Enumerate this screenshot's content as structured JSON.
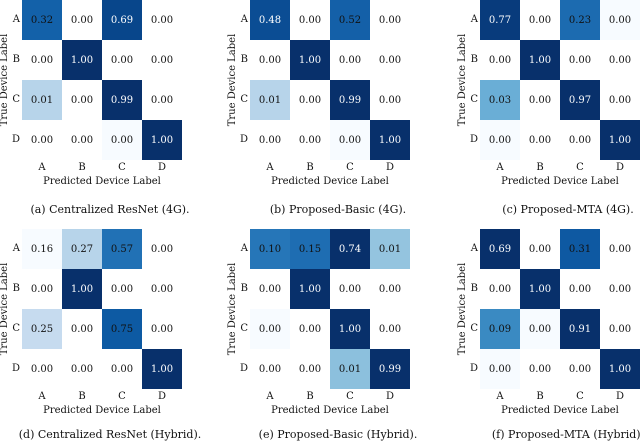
{
  "chart_data": [
    {
      "type": "heatmap",
      "title": "(a) Centralized ResNet (4G).",
      "xlabel": "Predicted Device Label",
      "ylabel": "True Device Label",
      "labels": [
        "A",
        "B",
        "C",
        "D"
      ],
      "values": [
        [
          "0.32",
          "0.00",
          "0.69",
          "0.00"
        ],
        [
          "0.00",
          "1.00",
          "0.00",
          "0.00"
        ],
        [
          "0.01",
          "0.00",
          "0.99",
          "0.00"
        ],
        [
          "0.00",
          "0.00",
          "0.00",
          "1.00"
        ]
      ],
      "colors": [
        [
          "#1361a9",
          "#ffffff",
          "#08468b",
          "#ffffff"
        ],
        [
          "#ffffff",
          "#08306b",
          "#ffffff",
          "#ffffff"
        ],
        [
          "#b7d4ea",
          "#ffffff",
          "#08306b",
          "#ffffff"
        ],
        [
          "#ffffff",
          "#ffffff",
          "#f7fbff",
          "#08306b"
        ]
      ]
    },
    {
      "type": "heatmap",
      "title": "(b) Proposed-Basic (4G).",
      "xlabel": "Predicted Device Label",
      "ylabel": "True Device Label",
      "labels": [
        "A",
        "B",
        "C",
        "D"
      ],
      "values": [
        [
          "0.48",
          "0.00",
          "0.52",
          "0.00"
        ],
        [
          "0.00",
          "1.00",
          "0.00",
          "0.00"
        ],
        [
          "0.01",
          "0.00",
          "0.99",
          "0.00"
        ],
        [
          "0.00",
          "0.00",
          "0.00",
          "1.00"
        ]
      ],
      "colors": [
        [
          "#0b4d94",
          "#ffffff",
          "#1460a8",
          "#ffffff"
        ],
        [
          "#ffffff",
          "#08306b",
          "#ffffff",
          "#ffffff"
        ],
        [
          "#b7d4ea",
          "#ffffff",
          "#08306b",
          "#ffffff"
        ],
        [
          "#ffffff",
          "#ffffff",
          "#f7fbff",
          "#08306b"
        ]
      ]
    },
    {
      "type": "heatmap",
      "title": "(c) Proposed-MTA (4G).",
      "xlabel": "Predicted Device Label",
      "ylabel": "True Device Label",
      "labels": [
        "A",
        "B",
        "C",
        "D"
      ],
      "values": [
        [
          "0.77",
          "0.00",
          "0.23",
          "0.00"
        ],
        [
          "0.00",
          "1.00",
          "0.00",
          "0.00"
        ],
        [
          "0.03",
          "0.00",
          "0.97",
          "0.00"
        ],
        [
          "0.00",
          "0.00",
          "0.00",
          "1.00"
        ]
      ],
      "colors": [
        [
          "#083b7c",
          "#ffffff",
          "#1c6bb0",
          "#f7fbff"
        ],
        [
          "#ffffff",
          "#08306b",
          "#ffffff",
          "#ffffff"
        ],
        [
          "#6aaed6",
          "#ffffff",
          "#08306b",
          "#ffffff"
        ],
        [
          "#f7fbff",
          "#ffffff",
          "#ffffff",
          "#08306b"
        ]
      ]
    },
    {
      "type": "heatmap",
      "title": "(d) Centralized ResNet (Hybrid).",
      "xlabel": "Predicted Device Label",
      "ylabel": "True Device Label",
      "labels": [
        "A",
        "B",
        "C",
        "D"
      ],
      "values": [
        [
          "0.16",
          "0.27",
          "0.57",
          "0.00"
        ],
        [
          "0.00",
          "1.00",
          "0.00",
          "0.00"
        ],
        [
          "0.25",
          "0.00",
          "0.75",
          "0.00"
        ],
        [
          "0.00",
          "0.00",
          "0.00",
          "1.00"
        ]
      ],
      "colors": [
        [
          "#f7fbff",
          "#b7d4ea",
          "#2171b5",
          "#ffffff"
        ],
        [
          "#ffffff",
          "#08306b",
          "#ffffff",
          "#ffffff"
        ],
        [
          "#c6dbef",
          "#ffffff",
          "#0d5aa3",
          "#ffffff"
        ],
        [
          "#ffffff",
          "#ffffff",
          "#ffffff",
          "#08306b"
        ]
      ]
    },
    {
      "type": "heatmap",
      "title": "(e) Proposed-Basic (Hybrid).",
      "xlabel": "Predicted Device Label",
      "ylabel": "True Device Label",
      "labels": [
        "A",
        "B",
        "C",
        "D"
      ],
      "values": [
        [
          "0.10",
          "0.15",
          "0.74",
          "0.01"
        ],
        [
          "0.00",
          "1.00",
          "0.00",
          "0.00"
        ],
        [
          "0.00",
          "0.00",
          "1.00",
          "0.00"
        ],
        [
          "0.00",
          "0.00",
          "0.01",
          "0.99"
        ]
      ],
      "colors": [
        [
          "#2676b8",
          "#1e6db2",
          "#08306b",
          "#94c4df"
        ],
        [
          "#ffffff",
          "#08306b",
          "#ffffff",
          "#ffffff"
        ],
        [
          "#f7fbff",
          "#ffffff",
          "#08306b",
          "#ffffff"
        ],
        [
          "#ffffff",
          "#ffffff",
          "#8cc0dd",
          "#08306b"
        ]
      ]
    },
    {
      "type": "heatmap",
      "title": "(f) Proposed-MTA (Hybrid).",
      "xlabel": "Predicted Device Label",
      "ylabel": "True Device Label",
      "labels": [
        "A",
        "B",
        "C",
        "D"
      ],
      "values": [
        [
          "0.69",
          "0.00",
          "0.31",
          "0.00"
        ],
        [
          "0.00",
          "1.00",
          "0.00",
          "0.00"
        ],
        [
          "0.09",
          "0.00",
          "0.91",
          "0.00"
        ],
        [
          "0.00",
          "0.00",
          "0.00",
          "1.00"
        ]
      ],
      "colors": [
        [
          "#08306b",
          "#ffffff",
          "#0e59a2",
          "#ffffff"
        ],
        [
          "#ffffff",
          "#08306b",
          "#ffffff",
          "#ffffff"
        ],
        [
          "#3a8ac2",
          "#f7fbff",
          "#08306b",
          "#ffffff"
        ],
        [
          "#f7fbff",
          "#ffffff",
          "#ffffff",
          "#08306b"
        ]
      ]
    }
  ]
}
